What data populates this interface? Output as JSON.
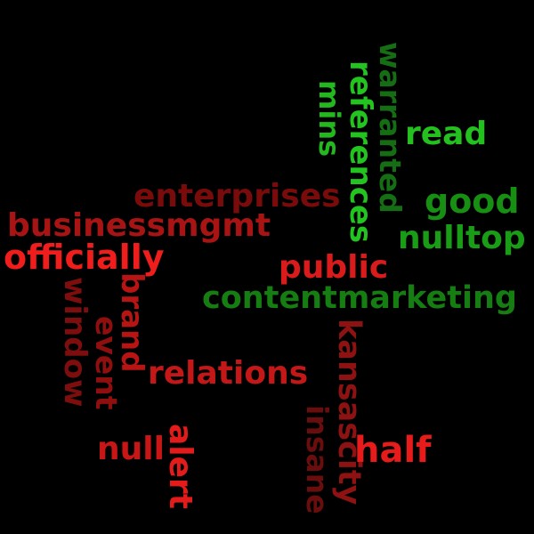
{
  "words": {
    "mins": {
      "text": "mins",
      "color": "#22b81e"
    },
    "references": {
      "text": "references",
      "color": "#23c41f"
    },
    "warranted": {
      "text": "warranted",
      "color": "#166e14"
    },
    "read": {
      "text": "read",
      "color": "#23c01f"
    },
    "good": {
      "text": "good",
      "color": "#168f12"
    },
    "nulltop": {
      "text": "nulltop",
      "color": "#1a9d16"
    },
    "enterprises": {
      "text": "enterprises",
      "color": "#7a0b0b"
    },
    "businessmgmt": {
      "text": "businessmgmt",
      "color": "#a81313"
    },
    "officially": {
      "text": "officially",
      "color": "#f01d1d"
    },
    "public": {
      "text": "public",
      "color": "#d91b1b"
    },
    "contentmarketing": {
      "text": "contentmarketing",
      "color": "#157d12"
    },
    "brand": {
      "text": "brand",
      "color": "#b81414"
    },
    "window": {
      "text": "window",
      "color": "#7e0e0e"
    },
    "event": {
      "text": "event",
      "color": "#8f0f0f"
    },
    "relations": {
      "text": "relations",
      "color": "#c41717"
    },
    "kansascity": {
      "text": "kansascity",
      "color": "#8f1212"
    },
    "insane": {
      "text": "insane",
      "color": "#6a0d0d"
    },
    "half": {
      "text": "half",
      "color": "#e81b1b"
    },
    "null": {
      "text": "null",
      "color": "#c81616"
    },
    "alert": {
      "text": "alert",
      "color": "#e41b1b"
    }
  }
}
